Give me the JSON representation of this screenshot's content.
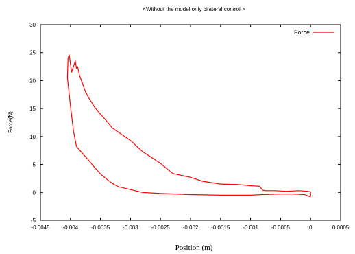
{
  "chart_data": {
    "type": "line",
    "title": "<Without the model only bilateral control >",
    "xlabel": "Position (m)",
    "ylabel": "Force(N)",
    "xlim": [
      -0.0045,
      0.0005
    ],
    "ylim": [
      -5,
      30
    ],
    "x_ticks": [
      "-0.0045",
      "-0.004",
      "-0.0035",
      "-0.003",
      "-0.0025",
      "-0.002",
      "-0.0015",
      "-0.001",
      "-0.0005",
      "0",
      "0.0005"
    ],
    "y_ticks": [
      "-5",
      "0",
      "5",
      "10",
      "15",
      "20",
      "25",
      "30"
    ],
    "grid": false,
    "legend_position": "top-right",
    "series": [
      {
        "name": "Force",
        "color": "#ff0000",
        "x": [
          0.0,
          -0.0001,
          -0.0003,
          -0.0005,
          -0.0008,
          -0.001,
          -0.0015,
          -0.002,
          -0.0025,
          -0.0028,
          -0.003,
          -0.0032,
          -0.0033,
          -0.0034,
          -0.0035,
          -0.0036,
          -0.0037,
          -0.0038,
          -0.0039,
          -0.00395,
          -0.004,
          -0.00405,
          -0.00404,
          -0.00402,
          -0.004,
          -0.00398,
          -0.00392,
          -0.0039,
          -0.00388,
          -0.00385,
          -0.0038,
          -0.00375,
          -0.0037,
          -0.0036,
          -0.0035,
          -0.0034,
          -0.0033,
          -0.003,
          -0.0028,
          -0.0025,
          -0.0023,
          -0.002,
          -0.0018,
          -0.0015,
          -0.0012,
          -0.001,
          -0.00085,
          -0.0008,
          -0.00075,
          -0.0006,
          -0.0004,
          -0.0002,
          -5e-05,
          0.0,
          0.0
        ],
        "y": [
          -0.8,
          -0.4,
          -0.3,
          -0.3,
          -0.4,
          -0.5,
          -0.5,
          -0.4,
          -0.2,
          0.0,
          0.5,
          1.0,
          1.6,
          2.4,
          3.3,
          4.5,
          5.8,
          7.0,
          8.2,
          11.0,
          15.5,
          20.5,
          24.0,
          24.6,
          23.0,
          21.5,
          23.5,
          22.2,
          22.5,
          21.0,
          19.5,
          18.0,
          17.0,
          15.3,
          14.0,
          12.8,
          11.5,
          9.3,
          7.3,
          5.2,
          3.4,
          2.7,
          2.0,
          1.5,
          1.4,
          1.2,
          1.1,
          0.4,
          0.3,
          0.3,
          0.2,
          0.3,
          0.2,
          0.1,
          -0.8
        ]
      }
    ]
  }
}
